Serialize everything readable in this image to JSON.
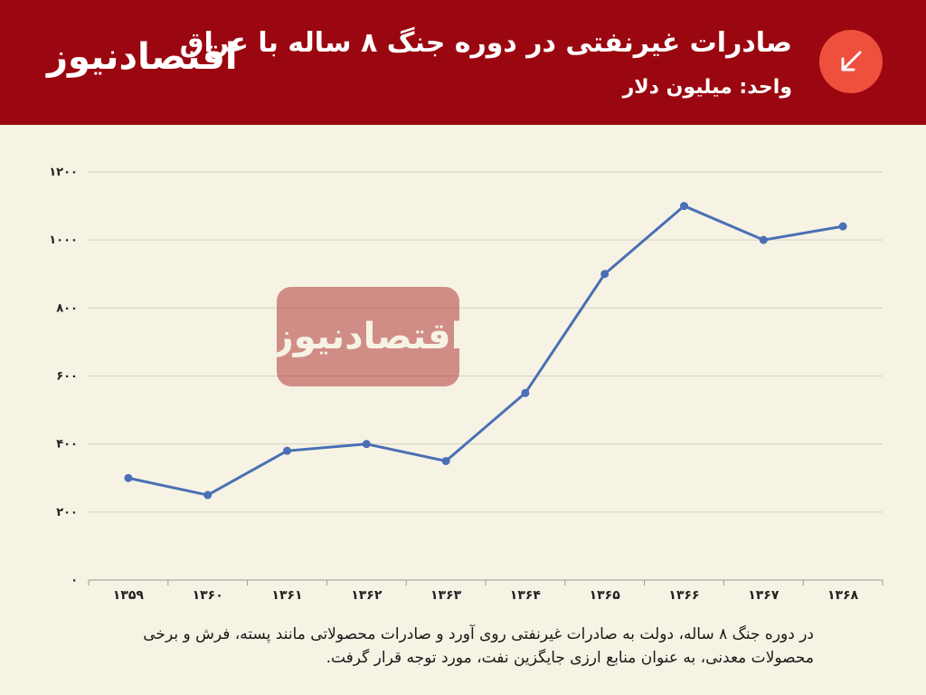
{
  "header": {
    "logo": "اقتصادنیوز",
    "title": "صادرات غیرنفتی در دوره جنگ ۸ ساله با عراق",
    "subtitle": "واحد: میلیون دلار",
    "badge_icon": "arrow-down-left-icon"
  },
  "watermark": "اقتصادنیوز",
  "caption": "در دوره جنگ ۸ ساله، دولت به صادرات غیرنفتی روی آورد و صادرات محصولاتی مانند پسته، فرش و برخی محصولات معدنی، به عنوان منابع ارزی جایگزین نفت، مورد توجه قرار گرفت.",
  "colors": {
    "header_bg": "#9b0710",
    "badge": "#ef4f3d",
    "line": "#4a6fb5",
    "background": "#f6f3e4"
  },
  "chart_data": {
    "type": "line",
    "title": "صادرات غیرنفتی در دوره جنگ ۸ ساله با عراق",
    "xlabel": "",
    "ylabel": "",
    "ylim": [
      0,
      1200
    ],
    "yticks": [
      0,
      200,
      400,
      600,
      800,
      1000,
      1200
    ],
    "ytick_labels": [
      "۰",
      "۲۰۰",
      "۴۰۰",
      "۶۰۰",
      "۸۰۰",
      "۱۰۰۰",
      "۱۲۰۰"
    ],
    "categories": [
      "۱۳۵۹",
      "۱۳۶۰",
      "۱۳۶۱",
      "۱۳۶۲",
      "۱۳۶۳",
      "۱۳۶۴",
      "۱۳۶۵",
      "۱۳۶۶",
      "۱۳۶۷",
      "۱۳۶۸"
    ],
    "series": [
      {
        "values": [
          300,
          250,
          380,
          400,
          350,
          550,
          900,
          1100,
          1000,
          1040
        ]
      }
    ],
    "grid": true
  }
}
